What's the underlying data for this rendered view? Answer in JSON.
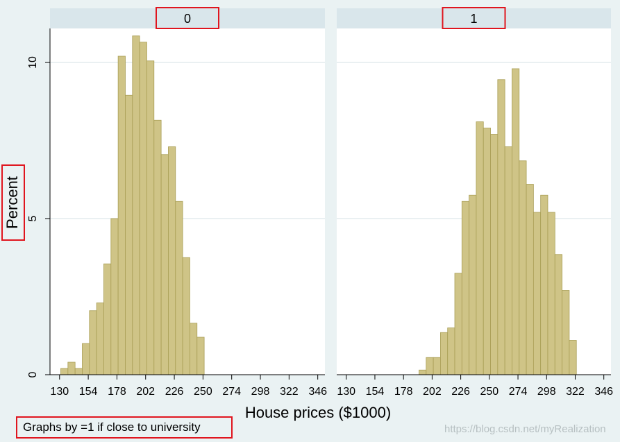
{
  "chart_data": {
    "type": "bar",
    "ylabel": "Percent",
    "xlabel": "House prices ($1000)",
    "note": "Graphs by =1 if close to university",
    "ylim": [
      0,
      11.2
    ],
    "xlim": [
      122,
      352
    ],
    "bin_width": 6,
    "yticks": [
      0,
      5,
      10
    ],
    "xticks": [
      130,
      154,
      178,
      202,
      226,
      250,
      274,
      298,
      322,
      346
    ],
    "grid": true,
    "bar_color": "#cfc487",
    "bar_edge": "#a99e55",
    "panels": [
      {
        "label": "0",
        "bins_start": 131,
        "values": [
          0.2,
          0.4,
          0.2,
          1.0,
          2.05,
          2.3,
          3.55,
          5.0,
          10.2,
          8.95,
          10.85,
          10.65,
          10.05,
          8.15,
          7.05,
          7.3,
          5.55,
          3.75,
          1.65,
          1.2
        ]
      },
      {
        "label": "1",
        "bins_start": 191,
        "values": [
          0.15,
          0.55,
          0.55,
          1.35,
          1.5,
          3.25,
          5.55,
          5.75,
          8.1,
          7.9,
          7.7,
          9.45,
          7.3,
          9.8,
          6.85,
          6.1,
          5.2,
          5.75,
          5.2,
          3.85,
          2.7,
          1.1
        ]
      }
    ]
  },
  "watermark": "https://blog.csdn.net/myRealization"
}
